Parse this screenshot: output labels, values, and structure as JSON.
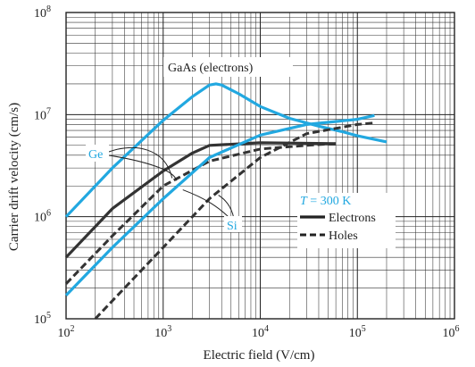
{
  "chart_data": {
    "type": "line",
    "xscale": "log",
    "yscale": "log",
    "xlim": [
      100,
      1000000
    ],
    "ylim": [
      100000,
      100000000
    ],
    "xlabel": "Electric field (V/cm)",
    "ylabel": "Carrier drift velocity (cm/s)",
    "x_ticks": [
      {
        "base": "10",
        "exp": "2",
        "value": 100
      },
      {
        "base": "10",
        "exp": "3",
        "value": 1000
      },
      {
        "base": "10",
        "exp": "4",
        "value": 10000
      },
      {
        "base": "10",
        "exp": "5",
        "value": 100000
      },
      {
        "base": "10",
        "exp": "6",
        "value": 1000000
      }
    ],
    "y_ticks": [
      {
        "base": "10",
        "exp": "5",
        "value": 100000
      },
      {
        "base": "10",
        "exp": "6",
        "value": 1000000
      },
      {
        "base": "10",
        "exp": "7",
        "value": 10000000
      },
      {
        "base": "10",
        "exp": "8",
        "value": 100000000
      }
    ],
    "grid": true,
    "annotations": {
      "gaas": "GaAs (electrons)",
      "ge": "Ge",
      "si": "Si",
      "temperature_symbol": "T",
      "temperature_value": " = 300 K"
    },
    "legend": {
      "position": "lower-right",
      "entries": [
        {
          "label": "Electrons",
          "style": "solid"
        },
        {
          "label": "Holes",
          "style": "dashed"
        }
      ]
    },
    "series": [
      {
        "material": "GaAs",
        "carrier": "electrons",
        "color": "#22a8e0",
        "style": "solid",
        "points": [
          [
            100,
            1000000
          ],
          [
            300,
            3000000
          ],
          [
            1000,
            8800000
          ],
          [
            2000,
            15000000
          ],
          [
            3000,
            19500000
          ],
          [
            3500,
            20000000
          ],
          [
            4000,
            19500000
          ],
          [
            6000,
            16000000
          ],
          [
            10000,
            12000000
          ],
          [
            20000,
            9200000
          ],
          [
            40000,
            7700000
          ],
          [
            70000,
            6800000
          ],
          [
            100000,
            6200000
          ],
          [
            200000,
            5400000
          ]
        ]
      },
      {
        "material": "Ge",
        "carrier": "electrons",
        "color": "#333333",
        "style": "solid",
        "points": [
          [
            100,
            400000
          ],
          [
            300,
            1200000
          ],
          [
            1000,
            2800000
          ],
          [
            2000,
            4200000
          ],
          [
            3000,
            5000000
          ],
          [
            10000,
            5300000
          ],
          [
            60000,
            5200000
          ]
        ]
      },
      {
        "material": "Ge",
        "carrier": "holes",
        "color": "#333333",
        "style": "dashed",
        "points": [
          [
            100,
            220000
          ],
          [
            300,
            650000
          ],
          [
            1000,
            2000000
          ],
          [
            3000,
            3500000
          ],
          [
            10000,
            4600000
          ],
          [
            30000,
            5000000
          ],
          [
            60000,
            5200000
          ]
        ]
      },
      {
        "material": "Si",
        "carrier": "electrons",
        "color": "#22a8e0",
        "style": "solid",
        "points": [
          [
            100,
            170000
          ],
          [
            300,
            500000
          ],
          [
            1000,
            1500000
          ],
          [
            3000,
            3800000
          ],
          [
            10000,
            6300000
          ],
          [
            30000,
            8000000
          ],
          [
            100000,
            9000000
          ],
          [
            150000,
            9800000
          ]
        ]
      },
      {
        "material": "Si",
        "carrier": "holes",
        "color": "#333333",
        "style": "dashed",
        "points": [
          [
            200,
            100000
          ],
          [
            500,
            250000
          ],
          [
            1000,
            500000
          ],
          [
            3000,
            1500000
          ],
          [
            10000,
            3800000
          ],
          [
            30000,
            6500000
          ],
          [
            100000,
            8000000
          ],
          [
            150000,
            8300000
          ]
        ]
      }
    ]
  }
}
